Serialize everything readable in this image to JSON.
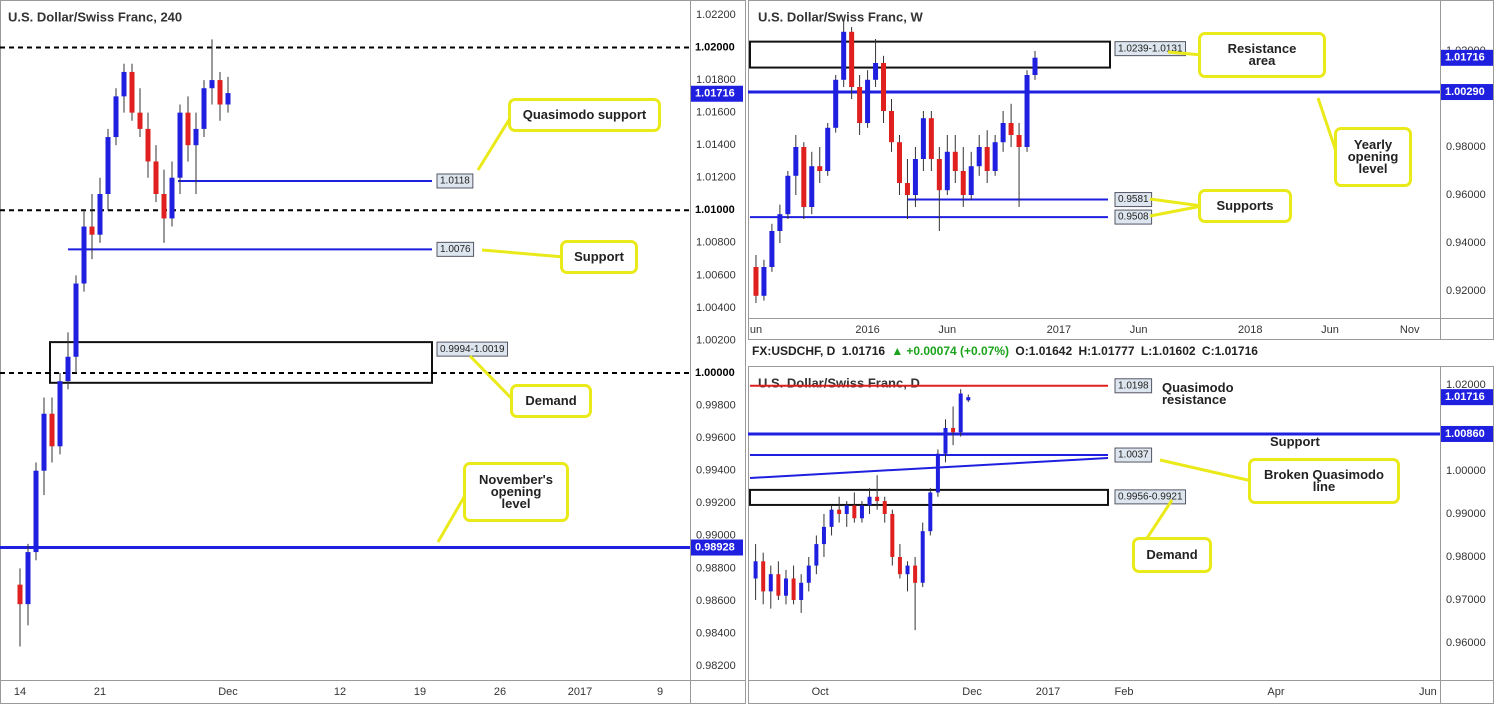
{
  "chart_data": [
    {
      "type": "candlestick",
      "title": "U.S. Dollar/Swiss Franc, 240",
      "xlim": [
        -1.25,
        41.875
      ],
      "xticks": [
        {
          "value": 0,
          "label": "14"
        },
        {
          "value": 5,
          "label": "21"
        },
        {
          "value": 13,
          "label": "Dec"
        },
        {
          "value": 20,
          "label": "12"
        },
        {
          "value": 25,
          "label": "19"
        },
        {
          "value": 30,
          "label": "26"
        },
        {
          "value": 35,
          "label": "2017"
        },
        {
          "value": 40,
          "label": "9"
        }
      ],
      "ylim": [
        0.98114,
        1.02292
      ],
      "yticks": [
        {
          "value": 1.022,
          "label": "1.02200"
        },
        {
          "value": 1.018,
          "label": "1.01800"
        },
        {
          "value": 1.016,
          "label": "1.01600"
        },
        {
          "value": 1.014,
          "label": "1.01400"
        },
        {
          "value": 1.012,
          "label": "1.01200"
        },
        {
          "value": 1.008,
          "label": "1.00800"
        },
        {
          "value": 1.006,
          "label": "1.00600"
        },
        {
          "value": 1.004,
          "label": "1.00400"
        },
        {
          "value": 1.002,
          "label": "1.00200"
        },
        {
          "value": 0.998,
          "label": "0.99800"
        },
        {
          "value": 0.996,
          "label": "0.99600"
        },
        {
          "value": 0.994,
          "label": "0.99400"
        },
        {
          "value": 0.992,
          "label": "0.99200"
        },
        {
          "value": 0.99,
          "label": "0.99000"
        },
        {
          "value": 0.988,
          "label": "0.98800"
        },
        {
          "value": 0.986,
          "label": "0.98600"
        },
        {
          "value": 0.984,
          "label": "0.98400"
        },
        {
          "value": 0.982,
          "label": "0.98200"
        }
      ],
      "up_color": "#1f1fe0",
      "down_color": "#e01f1f",
      "candles": {
        "x": [
          0,
          0.5,
          1,
          1.5,
          2,
          2.5,
          3,
          3.5,
          4,
          4.5,
          5,
          5.5,
          6,
          6.5,
          7,
          7.5,
          8,
          8.5,
          9,
          9.5,
          10,
          10.5,
          11,
          11.5,
          12,
          12.5,
          13
        ],
        "open": [
          0.987,
          0.9858,
          0.989,
          0.994,
          0.9975,
          0.9955,
          0.9995,
          1.001,
          1.0055,
          1.009,
          1.0085,
          1.011,
          1.0145,
          1.017,
          1.0185,
          1.016,
          1.015,
          1.013,
          1.011,
          1.0095,
          1.012,
          1.016,
          1.014,
          1.015,
          1.0175,
          1.018,
          1.0165
        ],
        "high": [
          0.988,
          0.9895,
          0.9945,
          0.9985,
          0.9985,
          1.0,
          1.0025,
          1.006,
          1.01,
          1.011,
          1.012,
          1.015,
          1.0175,
          1.019,
          1.019,
          1.0175,
          1.016,
          1.014,
          1.0125,
          1.013,
          1.0165,
          1.017,
          1.016,
          1.018,
          1.0205,
          1.0185,
          1.0182
        ],
        "low": [
          0.9832,
          0.9845,
          0.9885,
          0.9925,
          0.9945,
          0.995,
          0.999,
          1.0,
          1.005,
          1.007,
          1.008,
          1.01,
          1.014,
          1.016,
          1.0155,
          1.0145,
          1.012,
          1.0105,
          1.008,
          1.009,
          1.011,
          1.013,
          1.011,
          1.0145,
          1.0165,
          1.0155,
          1.016
        ],
        "close": [
          0.9858,
          0.989,
          0.994,
          0.9975,
          0.9955,
          0.9995,
          1.001,
          1.0055,
          1.009,
          1.0085,
          1.011,
          1.0145,
          1.017,
          1.0185,
          1.016,
          1.015,
          1.013,
          1.011,
          1.0095,
          1.012,
          1.016,
          1.014,
          1.015,
          1.0175,
          1.018,
          1.0165,
          1.0172
        ]
      },
      "axis_levels": [
        {
          "value": 1.02,
          "label": "1.02000",
          "color": "#000000",
          "dashed": true
        },
        {
          "value": 1.01,
          "label": "1.01000",
          "color": "#000000",
          "dashed": true
        },
        {
          "value": 1.0,
          "label": "1.00000",
          "color": "#000000",
          "dashed": true
        },
        {
          "value": 0.98928,
          "label": "0.98928",
          "color": "#1f1fe0",
          "dashed": false
        }
      ],
      "tagged_levels": [
        {
          "value": 1.0118,
          "label": "1.0118",
          "color": "#1f1fe0"
        },
        {
          "value": 1.0076,
          "label": "1.0076",
          "color": "#1f1fe0"
        }
      ],
      "zones": [
        {
          "high": 1.0019,
          "low": 0.9994,
          "label": "0.9994-1.0019"
        }
      ],
      "last_price": {
        "value": 1.01716,
        "label": "1.01716"
      },
      "annotations": [
        "Quasimodo support",
        "Support",
        "Demand",
        "November's\nopening\nlevel"
      ]
    },
    {
      "type": "candlestick",
      "title": "U.S. Dollar/Swiss Franc, W",
      "xlim": [
        -0.5,
        42.9
      ],
      "xticks": [
        {
          "value": 0,
          "label": "un"
        },
        {
          "value": 7,
          "label": "2016"
        },
        {
          "value": 12,
          "label": "Jun"
        },
        {
          "value": 19,
          "label": "2017"
        },
        {
          "value": 24,
          "label": "Jun"
        },
        {
          "value": 31,
          "label": "2018"
        },
        {
          "value": 36,
          "label": "Jun"
        },
        {
          "value": 41,
          "label": "Nov"
        }
      ],
      "ylim": [
        0.90875,
        1.04125
      ],
      "yticks": [
        {
          "value": 1.02,
          "label": "1.02000"
        },
        {
          "value": 0.98,
          "label": "0.98000"
        },
        {
          "value": 0.96,
          "label": "0.96000"
        },
        {
          "value": 0.94,
          "label": "0.94000"
        },
        {
          "value": 0.92,
          "label": "0.92000"
        }
      ],
      "up_color": "#1f1fe0",
      "down_color": "#e01f1f",
      "candles": {
        "x": [
          0,
          0.5,
          1,
          1.5,
          2,
          2.5,
          3,
          3.5,
          4,
          4.5,
          5,
          5.5,
          6,
          6.5,
          7,
          7.5,
          8,
          8.5,
          9,
          9.5,
          10,
          10.5,
          11,
          11.5,
          12,
          12.5,
          13,
          13.5,
          14,
          14.5,
          15,
          15.5,
          16,
          16.5,
          17,
          17.5
        ],
        "open": [
          0.93,
          0.918,
          0.93,
          0.945,
          0.952,
          0.968,
          0.98,
          0.955,
          0.972,
          0.97,
          0.988,
          1.008,
          1.028,
          1.005,
          0.99,
          1.008,
          1.015,
          0.995,
          0.982,
          0.965,
          0.96,
          0.975,
          0.992,
          0.975,
          0.962,
          0.978,
          0.97,
          0.96,
          0.972,
          0.98,
          0.97,
          0.982,
          0.99,
          0.985,
          0.98,
          1.01
        ],
        "high": [
          0.935,
          0.933,
          0.948,
          0.956,
          0.97,
          0.985,
          0.982,
          0.978,
          0.98,
          0.99,
          1.01,
          1.033,
          1.03,
          1.01,
          1.012,
          1.025,
          1.018,
          1.0,
          0.985,
          0.975,
          0.98,
          0.995,
          0.995,
          0.98,
          0.985,
          0.985,
          0.98,
          0.978,
          0.985,
          0.987,
          0.985,
          0.995,
          0.998,
          0.99,
          1.012,
          1.02
        ],
        "low": [
          0.915,
          0.916,
          0.928,
          0.94,
          0.95,
          0.96,
          0.95,
          0.952,
          0.965,
          0.968,
          0.986,
          1.005,
          1.0,
          0.985,
          0.988,
          1.005,
          0.99,
          0.978,
          0.96,
          0.95,
          0.955,
          0.97,
          0.97,
          0.945,
          0.96,
          0.965,
          0.955,
          0.958,
          0.968,
          0.965,
          0.968,
          0.978,
          0.98,
          0.955,
          0.978,
          1.008
        ],
        "close": [
          0.918,
          0.93,
          0.945,
          0.952,
          0.968,
          0.98,
          0.955,
          0.972,
          0.97,
          0.988,
          1.008,
          1.028,
          1.005,
          0.99,
          1.008,
          1.015,
          0.995,
          0.982,
          0.965,
          0.96,
          0.975,
          0.992,
          0.975,
          0.962,
          0.978,
          0.97,
          0.96,
          0.972,
          0.98,
          0.97,
          0.982,
          0.99,
          0.985,
          0.98,
          1.01,
          1.0172
        ]
      },
      "axis_levels": [
        {
          "value": 1.0029,
          "label": "1.00290",
          "color": "#1f1fe0",
          "dashed": false
        }
      ],
      "tagged_levels": [
        {
          "value": 0.9581,
          "label": "0.9581",
          "color": "#1f1fe0"
        },
        {
          "value": 0.9508,
          "label": "0.9508",
          "color": "#1f1fe0"
        }
      ],
      "zones": [
        {
          "high": 1.0239,
          "low": 1.0131,
          "label": "1.0239-1.0131"
        }
      ],
      "last_price": {
        "value": 1.01716,
        "label": "1.01716"
      },
      "annotations": [
        "Resistance\narea",
        "Yearly\nopening\nlevel",
        "Supports"
      ]
    },
    {
      "type": "candlestick",
      "title": "U.S. Dollar/Swiss Franc, D",
      "xlim": [
        0.05,
        9.16
      ],
      "xticks": [
        {
          "value": 1,
          "label": "Oct"
        },
        {
          "value": 3,
          "label": "Dec"
        },
        {
          "value": 4,
          "label": "2017"
        },
        {
          "value": 5,
          "label": "Feb"
        },
        {
          "value": 7,
          "label": "Apr"
        },
        {
          "value": 9,
          "label": "Jun"
        }
      ],
      "ylim": [
        0.9514,
        1.0244
      ],
      "yticks": [
        {
          "value": 1.02,
          "label": "1.02000"
        },
        {
          "value": 1.0,
          "label": "1.00000"
        },
        {
          "value": 0.99,
          "label": "0.99000"
        },
        {
          "value": 0.98,
          "label": "0.98000"
        },
        {
          "value": 0.97,
          "label": "0.97000"
        },
        {
          "value": 0.96,
          "label": "0.96000"
        }
      ],
      "up_color": "#1f1fe0",
      "down_color": "#e01f1f",
      "candles": {
        "x": [
          0.15,
          0.25,
          0.35,
          0.45,
          0.55,
          0.65,
          0.75,
          0.85,
          0.95,
          1.05,
          1.15,
          1.25,
          1.35,
          1.45,
          1.55,
          1.65,
          1.75,
          1.85,
          1.95,
          2.05,
          2.15,
          2.25,
          2.35,
          2.45,
          2.55,
          2.65,
          2.75,
          2.85,
          2.95
        ],
        "open": [
          0.975,
          0.979,
          0.972,
          0.976,
          0.971,
          0.975,
          0.97,
          0.974,
          0.978,
          0.983,
          0.987,
          0.991,
          0.99,
          0.992,
          0.989,
          0.992,
          0.994,
          0.993,
          0.99,
          0.98,
          0.976,
          0.978,
          0.974,
          0.986,
          0.995,
          1.004,
          1.01,
          1.009,
          1.01642
        ],
        "high": [
          0.983,
          0.981,
          0.978,
          0.979,
          0.977,
          0.978,
          0.976,
          0.98,
          0.985,
          0.99,
          0.992,
          0.994,
          0.993,
          0.995,
          0.993,
          0.996,
          0.999,
          0.994,
          0.991,
          0.983,
          0.979,
          0.98,
          0.988,
          0.996,
          1.005,
          1.012,
          1.015,
          1.019,
          1.01777
        ],
        "low": [
          0.97,
          0.969,
          0.968,
          0.97,
          0.969,
          0.969,
          0.967,
          0.972,
          0.976,
          0.98,
          0.985,
          0.988,
          0.987,
          0.988,
          0.988,
          0.99,
          0.991,
          0.988,
          0.978,
          0.975,
          0.972,
          0.963,
          0.973,
          0.985,
          0.994,
          1.002,
          1.006,
          1.008,
          1.01602
        ],
        "close": [
          0.979,
          0.972,
          0.976,
          0.971,
          0.975,
          0.97,
          0.974,
          0.978,
          0.983,
          0.987,
          0.991,
          0.99,
          0.992,
          0.989,
          0.992,
          0.994,
          0.993,
          0.99,
          0.98,
          0.976,
          0.978,
          0.974,
          0.986,
          0.995,
          1.004,
          1.01,
          1.009,
          1.018,
          1.01716
        ]
      },
      "axis_levels": [
        {
          "value": 1.0086,
          "label": "1.00860",
          "color": "#1f1fe0",
          "dashed": false
        }
      ],
      "tagged_levels": [
        {
          "value": 1.0198,
          "label": "1.0198",
          "color": "#e01f1f"
        },
        {
          "value": 1.0037,
          "label": "1.0037",
          "color": "#1f1fe0"
        }
      ],
      "zones": [
        {
          "high": 0.9956,
          "low": 0.9921,
          "label": "0.9956-0.9921"
        }
      ],
      "last_price": {
        "value": 1.01716,
        "label": "1.01716"
      },
      "annotations": [
        "Quasimodo\nresistance",
        "Support",
        "Broken Quasimodo\nline",
        "Demand"
      ]
    }
  ],
  "info_bar": {
    "symbol": "FX:USDCHF, D",
    "last": "1.01716",
    "change": "+0.00074 (+0.07%)",
    "open": "O:1.01642",
    "high": "H:1.01777",
    "low": "L:1.01602",
    "close": "C:1.01716"
  }
}
